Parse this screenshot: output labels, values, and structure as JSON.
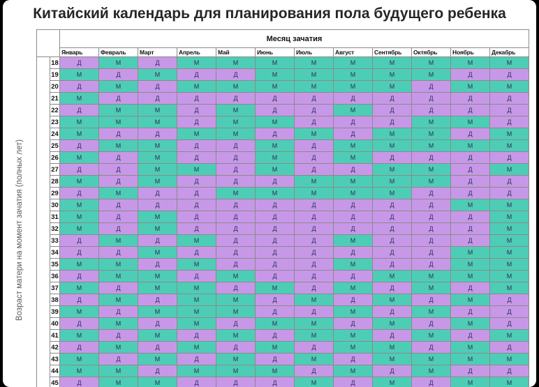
{
  "title": "Китайский календарь для планирования пола будущего ребенка",
  "column_group_label": "Месяц зачатия",
  "row_axis_label": "Возраст матери на момент зачатия (полных лет)",
  "months": [
    "Январь",
    "Февраль",
    "Март",
    "Апрель",
    "Май",
    "Июнь",
    "Июль",
    "Август",
    "Сентябрь",
    "Октябрь",
    "Ноябрь",
    "Декабрь"
  ],
  "legend_codes": {
    "Д": "#c798e8",
    "М": "#4ecdb6"
  },
  "rows": [
    {
      "age": "18",
      "cells": [
        "Д",
        "М",
        "Д",
        "М",
        "М",
        "М",
        "М",
        "М",
        "М",
        "М",
        "М",
        "М"
      ]
    },
    {
      "age": "19",
      "cells": [
        "М",
        "Д",
        "М",
        "Д",
        "Д",
        "М",
        "М",
        "М",
        "М",
        "М",
        "Д",
        "Д"
      ]
    },
    {
      "age": "20",
      "cells": [
        "Д",
        "М",
        "Д",
        "М",
        "М",
        "М",
        "М",
        "М",
        "М",
        "Д",
        "М",
        "М"
      ]
    },
    {
      "age": "21",
      "cells": [
        "М",
        "Д",
        "Д",
        "Д",
        "Д",
        "Д",
        "Д",
        "Д",
        "Д",
        "Д",
        "Д",
        "Д"
      ]
    },
    {
      "age": "22",
      "cells": [
        "Д",
        "М",
        "М",
        "Д",
        "М",
        "Д",
        "Д",
        "М",
        "Д",
        "Д",
        "Д",
        "Д"
      ]
    },
    {
      "age": "23",
      "cells": [
        "М",
        "М",
        "М",
        "Д",
        "М",
        "М",
        "Д",
        "Д",
        "Д",
        "М",
        "М",
        "Д"
      ]
    },
    {
      "age": "24",
      "cells": [
        "М",
        "Д",
        "Д",
        "М",
        "М",
        "Д",
        "М",
        "Д",
        "М",
        "М",
        "Д",
        "М"
      ]
    },
    {
      "age": "25",
      "cells": [
        "Д",
        "М",
        "М",
        "Д",
        "Д",
        "М",
        "Д",
        "М",
        "М",
        "М",
        "М",
        "М"
      ]
    },
    {
      "age": "26",
      "cells": [
        "М",
        "Д",
        "М",
        "Д",
        "Д",
        "М",
        "Д",
        "М",
        "Д",
        "Д",
        "Д",
        "Д"
      ]
    },
    {
      "age": "27",
      "cells": [
        "Д",
        "Д",
        "М",
        "М",
        "Д",
        "М",
        "Д",
        "Д",
        "М",
        "М",
        "Д",
        "М"
      ]
    },
    {
      "age": "28",
      "cells": [
        "М",
        "Д",
        "М",
        "Д",
        "Д",
        "Д",
        "М",
        "М",
        "М",
        "М",
        "Д",
        "Д"
      ]
    },
    {
      "age": "29",
      "cells": [
        "Д",
        "М",
        "Д",
        "Д",
        "М",
        "М",
        "М",
        "М",
        "М",
        "Д",
        "Д",
        "Д"
      ]
    },
    {
      "age": "30",
      "cells": [
        "М",
        "Д",
        "Д",
        "Д",
        "Д",
        "Д",
        "Д",
        "Д",
        "Д",
        "Д",
        "М",
        "М"
      ]
    },
    {
      "age": "31",
      "cells": [
        "М",
        "Д",
        "М",
        "Д",
        "Д",
        "Д",
        "Д",
        "Д",
        "Д",
        "Д",
        "Д",
        "М"
      ]
    },
    {
      "age": "32",
      "cells": [
        "М",
        "Д",
        "М",
        "Д",
        "Д",
        "Д",
        "Д",
        "Д",
        "Д",
        "Д",
        "Д",
        "М"
      ]
    },
    {
      "age": "33",
      "cells": [
        "Д",
        "М",
        "Д",
        "М",
        "Д",
        "Д",
        "Д",
        "М",
        "Д",
        "Д",
        "Д",
        "М"
      ]
    },
    {
      "age": "34",
      "cells": [
        "Д",
        "Д",
        "М",
        "Д",
        "Д",
        "Д",
        "Д",
        "Д",
        "Д",
        "Д",
        "М",
        "М"
      ]
    },
    {
      "age": "35",
      "cells": [
        "М",
        "М",
        "Д",
        "М",
        "Д",
        "Д",
        "Д",
        "М",
        "Д",
        "Д",
        "М",
        "М"
      ]
    },
    {
      "age": "36",
      "cells": [
        "Д",
        "М",
        "М",
        "Д",
        "М",
        "Д",
        "Д",
        "Д",
        "М",
        "М",
        "М",
        "М"
      ]
    },
    {
      "age": "37",
      "cells": [
        "М",
        "Д",
        "М",
        "М",
        "Д",
        "М",
        "Д",
        "М",
        "Д",
        "М",
        "Д",
        "М"
      ]
    },
    {
      "age": "38",
      "cells": [
        "Д",
        "М",
        "Д",
        "М",
        "М",
        "Д",
        "М",
        "Д",
        "М",
        "Д",
        "М",
        "Д"
      ]
    },
    {
      "age": "39",
      "cells": [
        "М",
        "Д",
        "М",
        "М",
        "М",
        "Д",
        "Д",
        "М",
        "Д",
        "М",
        "Д",
        "Д"
      ]
    },
    {
      "age": "40",
      "cells": [
        "Д",
        "М",
        "Д",
        "М",
        "Д",
        "М",
        "М",
        "Д",
        "М",
        "Д",
        "М",
        "Д"
      ]
    },
    {
      "age": "41",
      "cells": [
        "М",
        "Д",
        "М",
        "Д",
        "М",
        "Д",
        "М",
        "М",
        "Д",
        "М",
        "Д",
        "М"
      ]
    },
    {
      "age": "42",
      "cells": [
        "Д",
        "М",
        "Д",
        "М",
        "Д",
        "М",
        "Д",
        "М",
        "М",
        "Д",
        "М",
        "Д"
      ]
    },
    {
      "age": "43",
      "cells": [
        "М",
        "Д",
        "М",
        "Д",
        "М",
        "Д",
        "М",
        "Д",
        "М",
        "М",
        "М",
        "М"
      ]
    },
    {
      "age": "44",
      "cells": [
        "М",
        "М",
        "Д",
        "М",
        "М",
        "М",
        "Д",
        "М",
        "Д",
        "М",
        "Д",
        "Д"
      ]
    },
    {
      "age": "45",
      "cells": [
        "Д",
        "М",
        "М",
        "Д",
        "Д",
        "Д",
        "М",
        "Д",
        "М",
        "Д",
        "М",
        "М"
      ]
    }
  ]
}
